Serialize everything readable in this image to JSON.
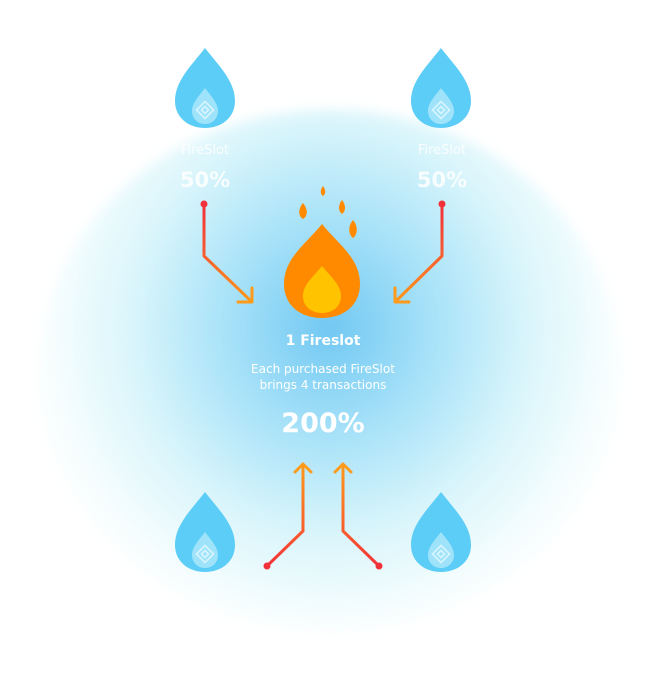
{
  "center": {
    "title": "1 Fireslot",
    "description_line1": "Each purchased FireSlot",
    "description_line2": "brings 4 transactions",
    "percent": "200%"
  },
  "top_left": {
    "label": "FireSlot",
    "percent": "50%"
  },
  "top_right": {
    "label": "FireSlot",
    "percent": "50%"
  },
  "icons": {
    "drop": "water-drop-binance-icon",
    "flame": "fire-flame-icon"
  },
  "colors": {
    "drop": "#5ccdf7",
    "drop_inner": "#9fe3fb",
    "flame_outer": "#ff8a00",
    "flame_inner": "#ffc300",
    "arrow_start": "#f2303a",
    "arrow_end": "#ff9a1a"
  }
}
